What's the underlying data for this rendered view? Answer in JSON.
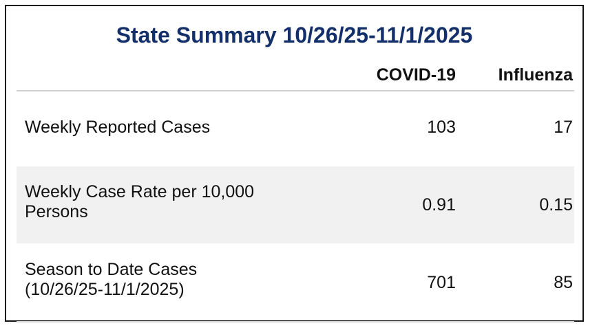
{
  "title": "State Summary 10/26/25-11/1/2025",
  "columns": [
    "COVID-19",
    "Influenza"
  ],
  "rows": [
    {
      "label_line1": "Weekly Reported Cases",
      "label_line2": "",
      "values": [
        "103",
        "17"
      ]
    },
    {
      "label_line1": "Weekly Case Rate per 10,000",
      "label_line2": "Persons",
      "values": [
        "0.91",
        "0.15"
      ]
    },
    {
      "label_line1": "Season to Date Cases",
      "label_line2": "(10/26/25-11/1/2025)",
      "values": [
        "701",
        "85"
      ]
    }
  ],
  "colors": {
    "title": "#14306b",
    "row_shade": "#f1f1f1",
    "rule": "#cfcfcf"
  }
}
